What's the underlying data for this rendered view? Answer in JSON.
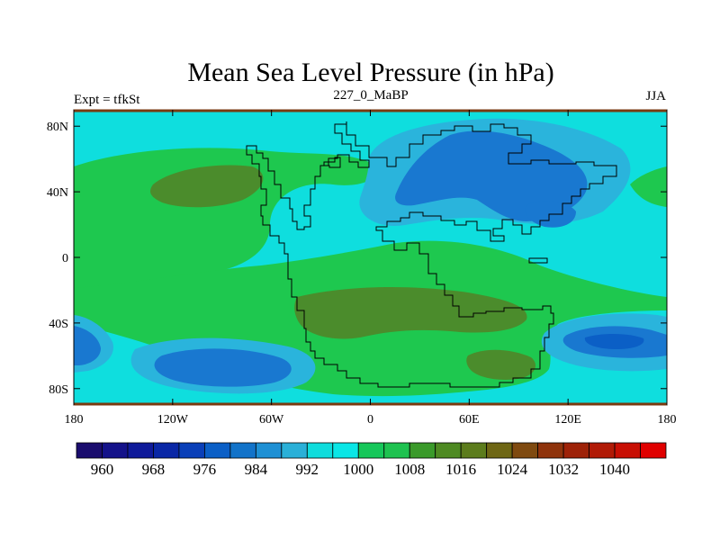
{
  "chart_data": {
    "type": "heatmap",
    "title": "Mean Sea Level Pressure (in hPa)",
    "left_string": "Expt = tfkSt",
    "center_string": "227_0_MaBP",
    "right_string": "JJA",
    "units": "hPa",
    "x_ticks": [
      "180",
      "120W",
      "60W",
      "0",
      "60E",
      "120E",
      "180"
    ],
    "x_tick_values": [
      -180,
      -120,
      -60,
      0,
      60,
      120,
      180
    ],
    "y_ticks": [
      "80N",
      "40N",
      "0",
      "40S",
      "80S"
    ],
    "y_tick_values": [
      80,
      40,
      0,
      -40,
      -80
    ],
    "xlim": [
      -180,
      180
    ],
    "ylim": [
      -90,
      90
    ],
    "contour_levels": [
      956,
      960,
      964,
      968,
      972,
      976,
      980,
      984,
      988,
      992,
      996,
      1000,
      1004,
      1008,
      1012,
      1016,
      1020,
      1024,
      1028,
      1032,
      1036,
      1040
    ],
    "colorbar_labels": [
      "960",
      "968",
      "976",
      "984",
      "992",
      "1000",
      "1008",
      "1016",
      "1024",
      "1032",
      "1040"
    ],
    "colorbar_colors": [
      "#1a0d6e",
      "#14128a",
      "#0f1a9a",
      "#0a27a6",
      "#0a3fb8",
      "#0b5fc6",
      "#1273c9",
      "#1e90d4",
      "#2ab0d8",
      "#0fdcdc",
      "#0ae6e6",
      "#16c75a",
      "#1ec250",
      "#3a9a2a",
      "#4e8a22",
      "#5c7c1c",
      "#6e6614",
      "#7f4a10",
      "#8f330c",
      "#9e2208",
      "#b11a06",
      "#c80f04",
      "#e00000"
    ],
    "fields": [
      {
        "name": "background",
        "value": "1000-1004",
        "color": "#0fdede"
      },
      {
        "name": "north-atlantic-high",
        "value": "1008-1012",
        "color": "#1ec84f",
        "lat": 40,
        "lon": -90
      },
      {
        "name": "north-atlantic-high-core",
        "value": "1016-1020",
        "color": "#4b8c2c",
        "lat": 45,
        "lon": -100
      },
      {
        "name": "arctic-asia-low",
        "value": "996-1000",
        "color": "#2ab4dc",
        "lat": 55,
        "lon": 80
      },
      {
        "name": "arctic-asia-low-core",
        "value": "988-992",
        "color": "#1978d0",
        "lat": 55,
        "lon": 75
      },
      {
        "name": "southern-high",
        "value": "1008-1012",
        "color": "#1ec84f",
        "lat": -40,
        "lon": 20
      },
      {
        "name": "southern-high-core",
        "value": "1016-1020",
        "color": "#4b8c2c",
        "lat": -30,
        "lon": 20
      },
      {
        "name": "southern-ocean-low-pacific",
        "value": "992-996",
        "color": "#1978d0",
        "lat": -65,
        "lon": -120
      },
      {
        "name": "southern-ocean-low-indian",
        "value": "988-992",
        "color": "#1978d0",
        "lat": -50,
        "lon": 150
      },
      {
        "name": "southern-ocean-low-west",
        "value": "996-1000",
        "color": "#2ab4dc",
        "lat": -50,
        "lon": -175
      }
    ],
    "grid": false,
    "colorbar_position": "bottom"
  }
}
